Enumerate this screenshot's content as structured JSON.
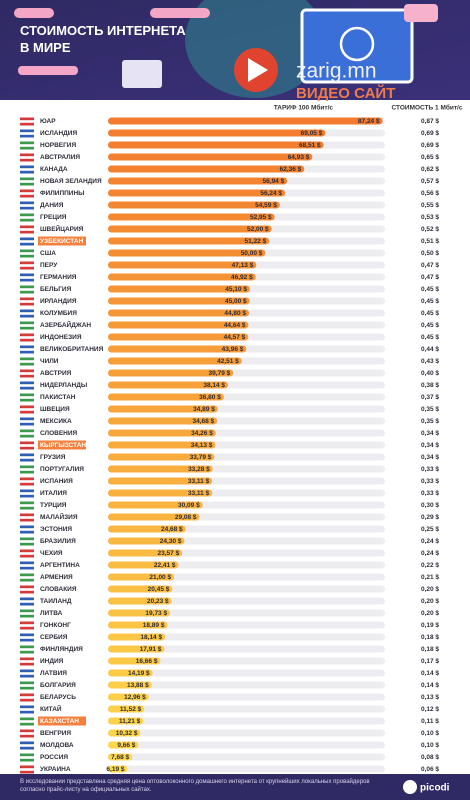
{
  "chart_data": {
    "type": "bar",
    "orientation": "horizontal",
    "title": "СТОИМОСТЬ ИНТЕРНЕТА В МИРЕ",
    "value_header": "ТАРИФ 100 Мбит/с",
    "watermark": [
      "zarig.mn",
      "ВИДЕО САЙТ"
    ],
    "categories": [
      "ЮАР",
      "ИСЛАНДИЯ",
      "НОРВЕГИЯ",
      "АВСТРАЛИЯ",
      "КАНАДА",
      "НОВАЯ ЗЕЛАНДИЯ",
      "ФИЛИППИНЫ",
      "ДАНИЯ",
      "ГРЕЦИЯ",
      "ШВЕЙЦАРИЯ",
      "УЗБЕКИСТАН",
      "США",
      "ПЕРУ",
      "ГЕРМАНИЯ",
      "БЕЛЬГИЯ",
      "ИРЛАНДИЯ",
      "КОЛУМБИЯ",
      "АЗЕРБАЙДЖАН",
      "ИНДОНЕЗИЯ",
      "ВЕЛИКОБРИТАНИЯ",
      "ЧИЛИ",
      "АВСТРИЯ",
      "НИДЕРЛАНДЫ",
      "ПАКИСТАН",
      "ШВЕЦИЯ",
      "МЕКСИКА",
      "СЛОВЕНИЯ",
      "КЫРГЫЗСТАН",
      "ГРУЗИЯ",
      "ПОРТУГАЛИЯ",
      "ИСПАНИЯ",
      "ИТАЛИЯ",
      "ТУРЦИЯ",
      "МАЛАЙЗИЯ",
      "ЭСТОНИЯ",
      "БРАЗИЛИЯ",
      "ЧЕХИЯ",
      "АРГЕНТИНА",
      "АРМЕНИЯ",
      "СЛОВАКИЯ",
      "ТАИЛАНД",
      "ЛИТВА",
      "ГОНКОНГ",
      "СЕРБИЯ",
      "ФИНЛЯНДИЯ",
      "ИНДИЯ",
      "ЛАТВИЯ",
      "БОЛГАРИЯ",
      "БЕЛАРУСЬ",
      "КИТАЙ",
      "КАЗАХСТАН",
      "ВЕНГРИЯ",
      "МОЛДОВА",
      "РОССИЯ",
      "УКРАИНА"
    ],
    "values": [
      87.24,
      69.05,
      68.51,
      64.93,
      62.36,
      56.94,
      56.24,
      54.59,
      52.95,
      52.0,
      51.22,
      50.0,
      47.13,
      46.92,
      45.1,
      45.0,
      44.8,
      44.64,
      44.57,
      43.96,
      42.51,
      39.79,
      38.14,
      36.8,
      34.89,
      34.68,
      34.26,
      34.13,
      33.79,
      33.28,
      33.11,
      33.11,
      30.09,
      29.08,
      24.68,
      24.3,
      23.57,
      22.41,
      21.0,
      20.45,
      20.23,
      19.73,
      18.89,
      18.14,
      17.91,
      16.66,
      14.19,
      13.88,
      12.96,
      11.52,
      11.21,
      10.32,
      9.66,
      7.68,
      6.19
    ],
    "value_labels": [
      "87,24 $",
      "69,05 $",
      "68,51 $",
      "64,93 $",
      "62,36 $",
      "56,94 $",
      "56,24 $",
      "54,59 $",
      "52,95 $",
      "52,00 $",
      "51,22 $",
      "50,00 $",
      "47,13 $",
      "46,92 $",
      "45,10 $",
      "45,00 $",
      "44,80 $",
      "44,64 $",
      "44,57 $",
      "43,96 $",
      "42,51 $",
      "39,79 $",
      "38,14 $",
      "36,80 $",
      "34,89 $",
      "34,68 $",
      "34,26 $",
      "34,13 $",
      "33,79 $",
      "33,28 $",
      "33,11 $",
      "33,11 $",
      "30,09 $",
      "29,08 $",
      "24,68 $",
      "24,30 $",
      "23,57 $",
      "22,41 $",
      "21,00 $",
      "20,45 $",
      "20,23 $",
      "19,73 $",
      "18,89 $",
      "18,14 $",
      "17,91 $",
      "16,66 $",
      "14,19 $",
      "13,88 $",
      "12,96 $",
      "11,52 $",
      "11,21 $",
      "10,32 $",
      "9,66 $",
      "7,68 $",
      "6,19 $"
    ],
    "colors": [
      "#f27b2d",
      "#fdd94c"
    ],
    "highlight_indices": [
      10,
      27,
      50
    ],
    "highlight_color": "#f57f3c",
    "xlim": [
      0,
      88
    ],
    "per_mbit": {
      "header": "СТОИМОСТЬ 1 Мбит/с",
      "values": [
        0.87,
        0.69,
        0.69,
        0.65,
        0.62,
        0.57,
        0.56,
        0.55,
        0.53,
        0.52,
        0.51,
        0.5,
        0.47,
        0.47,
        0.45,
        0.45,
        0.45,
        0.45,
        0.45,
        0.44,
        0.43,
        0.4,
        0.38,
        0.37,
        0.35,
        0.35,
        0.34,
        0.34,
        0.34,
        0.33,
        0.33,
        0.33,
        0.3,
        0.29,
        0.25,
        0.24,
        0.24,
        0.22,
        0.21,
        0.2,
        0.2,
        0.2,
        0.19,
        0.18,
        0.18,
        0.17,
        0.14,
        0.14,
        0.13,
        0.12,
        0.11,
        0.1,
        0.1,
        0.08,
        0.06
      ],
      "value_labels": [
        "0,87 $",
        "0,69 $",
        "0,69 $",
        "0,65 $",
        "0,62 $",
        "0,57 $",
        "0,56 $",
        "0,55 $",
        "0,53 $",
        "0,52 $",
        "0,51 $",
        "0,50 $",
        "0,47 $",
        "0,47 $",
        "0,45 $",
        "0,45 $",
        "0,45 $",
        "0,45 $",
        "0,45 $",
        "0,44 $",
        "0,43 $",
        "0,40 $",
        "0,38 $",
        "0,37 $",
        "0,35 $",
        "0,35 $",
        "0,34 $",
        "0,34 $",
        "0,34 $",
        "0,33 $",
        "0,33 $",
        "0,33 $",
        "0,30 $",
        "0,29 $",
        "0,25 $",
        "0,24 $",
        "0,24 $",
        "0,22 $",
        "0,21 $",
        "0,20 $",
        "0,20 $",
        "0,20 $",
        "0,19 $",
        "0,18 $",
        "0,18 $",
        "0,17 $",
        "0,14 $",
        "0,14 $",
        "0,13 $",
        "0,12 $",
        "0,11 $",
        "0,10 $",
        "0,10 $",
        "0,08 $",
        "0,06 $"
      ]
    },
    "footnote": "В исследовании представлена средняя цена оптоволоконного домашнего интернета от крупнейших локальных провайдеров согласно прайс-листу на официальных сайтах.",
    "logo": "picodi"
  }
}
